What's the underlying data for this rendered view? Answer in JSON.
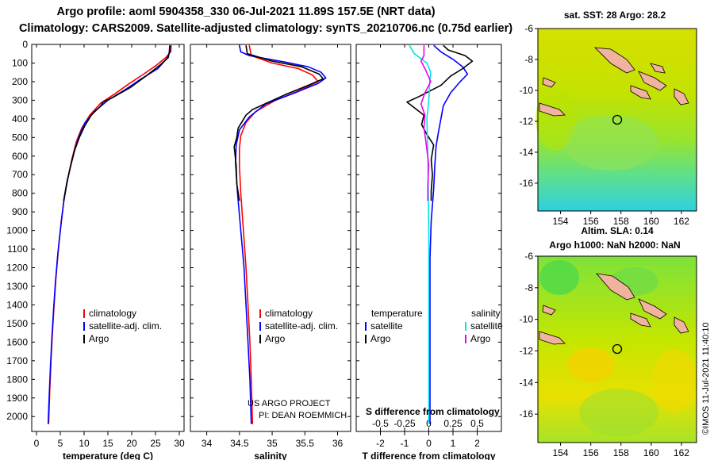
{
  "title": {
    "line1": "Argo profile: aoml 5904358_330 06-Jul-2021 11.89S 157.5E (NRT data)",
    "line2": "Climatology: CARS2009. Satellite-adjusted climatology: synTS_20210706.nc (0.75d earlier)"
  },
  "colors": {
    "climatology": "#ff0000",
    "satellite": "#0000ff",
    "argo": "#000000",
    "t_diff": "#00e5e5",
    "s_diff": "#ee00ee"
  },
  "chart_data": [
    {
      "type": "line",
      "panel": "temperature",
      "xlabel": "temperature (deg C)",
      "xlim": [
        -1,
        31
      ],
      "xticks": [
        "0",
        "5",
        "10",
        "15",
        "20",
        "25",
        "30"
      ],
      "ylim": [
        2080,
        0
      ],
      "yticks": [
        "0",
        "100",
        "200",
        "300",
        "400",
        "500",
        "600",
        "700",
        "800",
        "900",
        "1000",
        "1100",
        "1200",
        "1300",
        "1400",
        "1500",
        "1600",
        "1700",
        "1800",
        "1900",
        "2000"
      ],
      "legend": [
        "climatology",
        "satellite-adj. clim.",
        "Argo"
      ],
      "series": [
        {
          "name": "climatology",
          "color": "#ff0000",
          "points": [
            [
              28.3,
              5
            ],
            [
              28.2,
              40
            ],
            [
              27.2,
              70
            ],
            [
              25.3,
              110
            ],
            [
              22.5,
              160
            ],
            [
              19.5,
              210
            ],
            [
              16.5,
              265
            ],
            [
              13.5,
              315
            ],
            [
              11.2,
              380
            ],
            [
              9.5,
              450
            ],
            [
              8.4,
              520
            ],
            [
              7.4,
              620
            ],
            [
              6.6,
              720
            ],
            [
              5.8,
              830
            ],
            [
              5.2,
              950
            ],
            [
              4.6,
              1100
            ],
            [
              4.1,
              1250
            ],
            [
              3.7,
              1400
            ],
            [
              3.35,
              1550
            ],
            [
              3.05,
              1700
            ],
            [
              2.8,
              1850
            ],
            [
              2.55,
              2040
            ]
          ]
        },
        {
          "name": "satellite-adj. clim.",
          "color": "#0000ff",
          "points": [
            [
              28.1,
              5
            ],
            [
              28.0,
              40
            ],
            [
              27.4,
              75
            ],
            [
              25.5,
              130
            ],
            [
              22.0,
              185
            ],
            [
              18.5,
              245
            ],
            [
              15.0,
              300
            ],
            [
              12.2,
              360
            ],
            [
              10.2,
              420
            ],
            [
              9.0,
              490
            ],
            [
              8.1,
              560
            ],
            [
              7.2,
              650
            ],
            [
              6.4,
              740
            ],
            [
              5.7,
              850
            ],
            [
              5.1,
              980
            ],
            [
              4.5,
              1120
            ],
            [
              4.0,
              1270
            ],
            [
              3.6,
              1420
            ],
            [
              3.25,
              1570
            ],
            [
              2.95,
              1720
            ],
            [
              2.7,
              1870
            ],
            [
              2.45,
              2040
            ]
          ]
        },
        {
          "name": "Argo",
          "color": "#000000",
          "points": [
            [
              28.0,
              5
            ],
            [
              27.9,
              40
            ],
            [
              27.7,
              70
            ],
            [
              26.0,
              110
            ],
            [
              23.0,
              170
            ],
            [
              19.8,
              230
            ],
            [
              16.0,
              285
            ],
            [
              14.0,
              310
            ],
            [
              13.5,
              330
            ],
            [
              11.5,
              380
            ],
            [
              10.1,
              440
            ],
            [
              9.0,
              500
            ],
            [
              8.0,
              570
            ],
            [
              7.2,
              650
            ],
            [
              6.4,
              740
            ],
            [
              5.7,
              840
            ]
          ]
        }
      ]
    },
    {
      "type": "line",
      "panel": "salinity",
      "xlabel": "salinity",
      "xlim": [
        33.75,
        36.2
      ],
      "xticks": [
        "34",
        "34.5",
        "35",
        "35.5",
        "36"
      ],
      "ylim": [
        2080,
        0
      ],
      "legend": [
        "climatology",
        "satellite-adj. clim.",
        "Argo"
      ],
      "credit": [
        "US ARGO PROJECT",
        "PI: DEAN ROEMMICH"
      ],
      "series": [
        {
          "name": "climatology",
          "color": "#ff0000",
          "points": [
            [
              34.65,
              5
            ],
            [
              34.68,
              60
            ],
            [
              35.0,
              100
            ],
            [
              35.4,
              130
            ],
            [
              35.62,
              165
            ],
            [
              35.7,
              200
            ],
            [
              35.4,
              250
            ],
            [
              35.05,
              300
            ],
            [
              34.75,
              360
            ],
            [
              34.6,
              420
            ],
            [
              34.52,
              490
            ],
            [
              34.5,
              560
            ],
            [
              34.5,
              650
            ],
            [
              34.52,
              800
            ],
            [
              34.56,
              1000
            ],
            [
              34.6,
              1200
            ],
            [
              34.63,
              1400
            ],
            [
              34.66,
              1600
            ],
            [
              34.68,
              1800
            ],
            [
              34.7,
              2040
            ]
          ]
        },
        {
          "name": "satellite-adj. clim.",
          "color": "#0000ff",
          "points": [
            [
              34.5,
              5
            ],
            [
              34.52,
              40
            ],
            [
              34.65,
              60
            ],
            [
              35.2,
              95
            ],
            [
              35.55,
              120
            ],
            [
              35.75,
              150
            ],
            [
              35.82,
              180
            ],
            [
              35.7,
              210
            ],
            [
              35.35,
              260
            ],
            [
              34.9,
              320
            ],
            [
              34.65,
              390
            ],
            [
              34.5,
              460
            ],
            [
              34.45,
              540
            ],
            [
              34.44,
              640
            ],
            [
              34.47,
              800
            ],
            [
              34.52,
              1000
            ],
            [
              34.57,
              1200
            ],
            [
              34.6,
              1400
            ],
            [
              34.63,
              1600
            ],
            [
              34.66,
              1800
            ],
            [
              34.68,
              2040
            ]
          ]
        },
        {
          "name": "Argo",
          "color": "#000000",
          "points": [
            [
              34.6,
              5
            ],
            [
              34.62,
              50
            ],
            [
              35.0,
              90
            ],
            [
              35.45,
              120
            ],
            [
              35.72,
              160
            ],
            [
              35.78,
              185
            ],
            [
              35.55,
              220
            ],
            [
              35.2,
              270
            ],
            [
              34.95,
              310
            ],
            [
              34.7,
              350
            ],
            [
              34.6,
              380
            ],
            [
              34.48,
              450
            ],
            [
              34.46,
              500
            ],
            [
              34.42,
              550
            ],
            [
              34.45,
              650
            ],
            [
              34.46,
              750
            ],
            [
              34.5,
              840
            ]
          ]
        }
      ]
    },
    {
      "type": "line",
      "panel": "difference",
      "xlabel": "T difference from climatology",
      "xlim": [
        -3,
        3.0
      ],
      "xticks": [
        "-2",
        "-1",
        "0",
        "1",
        "2"
      ],
      "s_axis_label": "S difference from climatology",
      "s_ticks": [
        "-0.5",
        "-0.25",
        "0",
        "0.25",
        "0.5"
      ],
      "ylim": [
        2080,
        0
      ],
      "legend": {
        "temperature_title": "temperature",
        "salinity_title": "salinity",
        "temperature": [
          "satellite",
          "Argo"
        ],
        "salinity": [
          "satellite",
          "Argo"
        ]
      },
      "series": [
        {
          "name": "T satellite",
          "color": "#0000ff",
          "points": [
            [
              0.2,
              5
            ],
            [
              0.5,
              40
            ],
            [
              1.0,
              80
            ],
            [
              1.4,
              120
            ],
            [
              1.6,
              160
            ],
            [
              1.3,
              200
            ],
            [
              0.9,
              260
            ],
            [
              0.6,
              330
            ],
            [
              0.5,
              400
            ],
            [
              0.4,
              470
            ],
            [
              0.3,
              550
            ],
            [
              0.25,
              650
            ],
            [
              0.2,
              780
            ],
            [
              0.1,
              950
            ],
            [
              0.05,
              1150
            ],
            [
              0.05,
              1400
            ],
            [
              0.05,
              1700
            ],
            [
              0.05,
              2040
            ]
          ]
        },
        {
          "name": "T Argo",
          "color": "#000000",
          "points": [
            [
              0.6,
              5
            ],
            [
              0.8,
              30
            ],
            [
              1.5,
              60
            ],
            [
              1.8,
              90
            ],
            [
              1.4,
              130
            ],
            [
              0.9,
              170
            ],
            [
              0.5,
              220
            ],
            [
              -0.4,
              280
            ],
            [
              -0.9,
              310
            ],
            [
              -0.6,
              340
            ],
            [
              -0.2,
              380
            ],
            [
              -0.3,
              430
            ],
            [
              -0.1,
              480
            ],
            [
              0.2,
              540
            ],
            [
              0.1,
              620
            ],
            [
              0.15,
              700
            ],
            [
              0.1,
              790
            ],
            [
              0.1,
              840
            ]
          ]
        },
        {
          "name": "S satellite",
          "color": "#00e5e5",
          "points": [
            [
              -0.2,
              5
            ],
            [
              -0.15,
              50
            ],
            [
              -0.02,
              100
            ],
            [
              0.02,
              150
            ],
            [
              0.01,
              200
            ],
            [
              0.0,
              300
            ],
            [
              -0.02,
              400
            ],
            [
              -0.01,
              600
            ],
            [
              0.0,
              1000
            ],
            [
              0.0,
              1400
            ],
            [
              0.0,
              2040
            ]
          ]
        },
        {
          "name": "S Argo",
          "color": "#ee00ee",
          "points": [
            [
              -0.05,
              5
            ],
            [
              -0.05,
              60
            ],
            [
              -0.08,
              90
            ],
            [
              -0.03,
              140
            ],
            [
              0.02,
              200
            ],
            [
              -0.04,
              260
            ],
            [
              -0.08,
              320
            ],
            [
              -0.04,
              380
            ],
            [
              -0.05,
              450
            ],
            [
              -0.03,
              520
            ],
            [
              0.0,
              650
            ],
            [
              -0.01,
              750
            ],
            [
              -0.01,
              840
            ]
          ]
        }
      ]
    }
  ],
  "maps": [
    {
      "name": "sst",
      "title": "sat. SST: 28 Argo: 28.2",
      "footer": "Altim. SLA: 0.14",
      "xticks": [
        "154",
        "156",
        "158",
        "160",
        "162"
      ],
      "yticks": [
        "-6",
        "-8",
        "-10",
        "-12",
        "-14",
        "-16"
      ]
    },
    {
      "name": "sla",
      "title": "Argo h1000: NaN h2000: NaN",
      "xticks": [
        "154",
        "156",
        "158",
        "160",
        "162"
      ],
      "yticks": [
        "-6",
        "-8",
        "-10",
        "-12",
        "-14",
        "-16"
      ],
      "credit": "©IMOS 11-Jul-2021 11:40:10"
    }
  ]
}
